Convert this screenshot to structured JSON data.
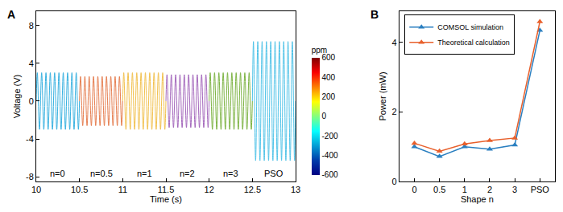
{
  "chart_data": [
    {
      "type": "line",
      "title": "A",
      "x_label": "Time (s)",
      "y_label": "Voltage (V)",
      "xlim": [
        10,
        13
      ],
      "xticks": [
        10,
        10.5,
        11,
        11.5,
        12,
        12.5,
        13
      ],
      "ylim": [
        -8.5,
        9.5
      ],
      "yticks": [
        -8,
        -4,
        0,
        4,
        8
      ],
      "grid": false,
      "colorbar": {
        "title": "ppm",
        "range": [
          -600,
          600
        ],
        "ticks": [
          -600,
          -400,
          -200,
          0,
          200,
          400,
          600
        ],
        "color": "jet"
      },
      "series": [
        {
          "name": "n=0",
          "color": "#35b0e0",
          "x": [
            10,
            10.0125,
            10.0375,
            10.0625,
            10.0875,
            10.1125,
            10.1375,
            10.1625,
            10.1875,
            10.2125,
            10.2375,
            10.2625,
            10.2875,
            10.3125,
            10.3375,
            10.3625,
            10.3875,
            10.4125,
            10.4375,
            10.4625,
            10.4875,
            10.5
          ],
          "values": [
            0,
            3,
            -3,
            3,
            -3,
            3,
            -3,
            3,
            -3,
            3,
            -3,
            3,
            -3,
            3,
            -3,
            3,
            -3,
            3,
            -3,
            3,
            -3,
            0
          ]
        },
        {
          "name": "n=0.5",
          "color": "#e67e50",
          "x": [
            10.5,
            10.5125,
            10.5375,
            10.5625,
            10.5875,
            10.6125,
            10.6375,
            10.6625,
            10.6875,
            10.7125,
            10.7375,
            10.7625,
            10.7875,
            10.8125,
            10.8375,
            10.8625,
            10.8875,
            10.9125,
            10.9375,
            10.9625,
            10.9875,
            11
          ],
          "values": [
            0,
            2.6,
            -2.6,
            2.6,
            -2.6,
            2.6,
            -2.6,
            2.6,
            -2.6,
            2.6,
            -2.6,
            2.6,
            -2.6,
            2.6,
            -2.6,
            2.6,
            -2.6,
            2.6,
            -2.6,
            2.6,
            -2.6,
            0
          ]
        },
        {
          "name": "n=1",
          "color": "#f2c14e",
          "x": [
            11,
            11.0125,
            11.0375,
            11.0625,
            11.0875,
            11.1125,
            11.1375,
            11.1625,
            11.1875,
            11.2125,
            11.2375,
            11.2625,
            11.2875,
            11.3125,
            11.3375,
            11.3625,
            11.3875,
            11.4125,
            11.4375,
            11.4625,
            11.4875,
            11.5
          ],
          "values": [
            0,
            3,
            -3,
            3,
            -3,
            3,
            -3,
            3,
            -3,
            3,
            -3,
            3,
            -3,
            3,
            -3,
            3,
            -3,
            3,
            -3,
            3,
            -3,
            0
          ]
        },
        {
          "name": "n=2",
          "color": "#a569bd",
          "x": [
            11.5,
            11.5125,
            11.5375,
            11.5625,
            11.5875,
            11.6125,
            11.6375,
            11.6625,
            11.6875,
            11.7125,
            11.7375,
            11.7625,
            11.7875,
            11.8125,
            11.8375,
            11.8625,
            11.8875,
            11.9125,
            11.9375,
            11.9625,
            11.9875,
            12
          ],
          "values": [
            0,
            2.8,
            -2.8,
            2.8,
            -2.8,
            2.8,
            -2.8,
            2.8,
            -2.8,
            2.8,
            -2.8,
            2.8,
            -2.8,
            2.8,
            -2.8,
            2.8,
            -2.8,
            2.8,
            -2.8,
            2.8,
            -2.8,
            0
          ]
        },
        {
          "name": "n=3",
          "color": "#7cb342",
          "x": [
            12,
            12.0125,
            12.0375,
            12.0625,
            12.0875,
            12.1125,
            12.1375,
            12.1625,
            12.1875,
            12.2125,
            12.2375,
            12.2625,
            12.2875,
            12.3125,
            12.3375,
            12.3625,
            12.3875,
            12.4125,
            12.4375,
            12.4625,
            12.4875,
            12.5
          ],
          "values": [
            0,
            3,
            -3,
            3,
            -3,
            3,
            -3,
            3,
            -3,
            3,
            -3,
            3,
            -3,
            3,
            -3,
            3,
            -3,
            3,
            -3,
            3,
            -3,
            0
          ]
        },
        {
          "name": "PSO",
          "color": "#4fc3e8",
          "x": [
            12.5,
            12.5125,
            12.5375,
            12.5625,
            12.5875,
            12.6125,
            12.6375,
            12.6625,
            12.6875,
            12.7125,
            12.7375,
            12.7625,
            12.7875,
            12.8125,
            12.8375,
            12.8625,
            12.8875,
            12.9125,
            12.9375,
            12.9625,
            12.9875,
            13
          ],
          "values": [
            0,
            6.3,
            -6.3,
            6.3,
            -6.3,
            6.3,
            -6.3,
            6.3,
            -6.3,
            6.3,
            -6.3,
            6.3,
            -6.3,
            6.3,
            -6.3,
            6.3,
            -6.3,
            6.3,
            -6.3,
            6.3,
            -6.3,
            0
          ]
        }
      ]
    },
    {
      "type": "line",
      "title": "B",
      "x_label": "Shape n",
      "y_label": "Power (mW)",
      "categories": [
        "0",
        "0.5",
        "1",
        "2",
        "3",
        "PSO"
      ],
      "ylim": [
        0,
        4.9
      ],
      "yticks": [
        0,
        2,
        4
      ],
      "grid": false,
      "legend": "upper left",
      "marker": "triangle",
      "series": [
        {
          "name": "COMSOL simulation",
          "color": "#2a7fc0",
          "values": [
            1.0,
            0.72,
            1.0,
            0.93,
            1.05,
            4.35
          ]
        },
        {
          "name": "Theoretical calculation",
          "color": "#e8602c",
          "values": [
            1.1,
            0.87,
            1.08,
            1.18,
            1.25,
            4.6
          ]
        }
      ]
    }
  ]
}
